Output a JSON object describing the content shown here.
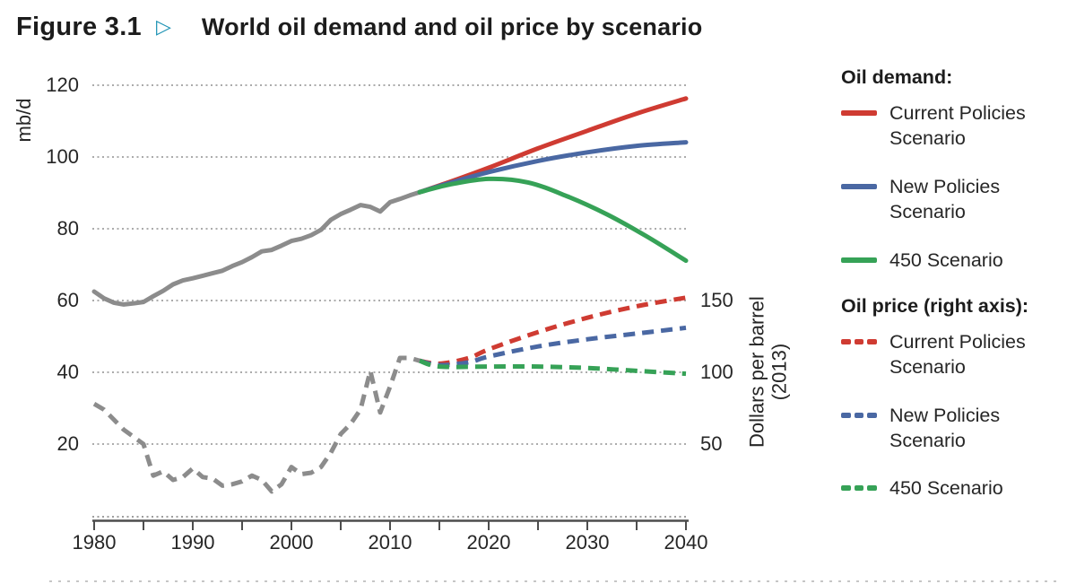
{
  "figure": {
    "label": "Figure 3.1",
    "arrow": "▷",
    "title": "World oil demand and oil price by scenario"
  },
  "colors": {
    "red": "#cf3b32",
    "blue": "#4a68a3",
    "green": "#36a257",
    "gray": "#8c8c8c",
    "teal_arrow": "#1e93b4",
    "grid": "#ababab",
    "axis": "#4d4d4d",
    "text": "#262626"
  },
  "axes": {
    "left": {
      "unit": "mb/d",
      "ticks": [
        120,
        100,
        80,
        60,
        40,
        20
      ]
    },
    "right": {
      "label_line1": "Dollars per barrel",
      "label_line2": "(2013)",
      "ticks": [
        150,
        100,
        50
      ]
    },
    "x": {
      "labeled_ticks": [
        1980,
        1990,
        2000,
        2010,
        2020,
        2030,
        2040
      ],
      "minor_step": 5,
      "range": [
        1980,
        2040
      ]
    }
  },
  "legend": {
    "demand": {
      "heading": "Oil demand:",
      "items": [
        {
          "label": "Current Policies Scenario",
          "color_key": "red",
          "style": "solid"
        },
        {
          "label": "New Policies Scenario",
          "color_key": "blue",
          "style": "solid"
        },
        {
          "label": "450 Scenario",
          "color_key": "green",
          "style": "solid"
        }
      ]
    },
    "price": {
      "heading": "Oil price (right axis):",
      "items": [
        {
          "label": "Current Policies Scenario",
          "color_key": "red",
          "style": "dashed"
        },
        {
          "label": "New Policies Scenario",
          "color_key": "blue",
          "style": "dashed"
        },
        {
          "label": "450 Scenario",
          "color_key": "green",
          "style": "dashed"
        }
      ]
    }
  },
  "chart_data": {
    "type": "line",
    "title": "World oil demand and oil price by scenario",
    "x_axis": {
      "range": [
        1980,
        2040
      ],
      "labeled_ticks": [
        1980,
        1990,
        2000,
        2010,
        2020,
        2030,
        2040
      ],
      "minor_tick_step": 5
    },
    "left_axis": {
      "label": "mb/d",
      "range": [
        0,
        125
      ],
      "ticks": [
        20,
        40,
        60,
        80,
        100,
        120
      ],
      "grid": "dotted"
    },
    "right_axis": {
      "label": "Dollars per barrel (2013)",
      "range": [
        0,
        156.25
      ],
      "ticks": [
        50,
        100,
        150
      ]
    },
    "series": [
      {
        "name": "Oil demand — historical",
        "axis": "left",
        "style": "solid",
        "color_key": "gray",
        "smooth": false,
        "points": [
          [
            1980,
            62.5
          ],
          [
            1981,
            60.6
          ],
          [
            1982,
            59.4
          ],
          [
            1983,
            58.9
          ],
          [
            1984,
            59.2
          ],
          [
            1985,
            59.6
          ],
          [
            1986,
            61.2
          ],
          [
            1987,
            62.7
          ],
          [
            1988,
            64.5
          ],
          [
            1989,
            65.6
          ],
          [
            1990,
            66.2
          ],
          [
            1991,
            66.9
          ],
          [
            1992,
            67.6
          ],
          [
            1993,
            68.3
          ],
          [
            1994,
            69.6
          ],
          [
            1995,
            70.7
          ],
          [
            1996,
            72.1
          ],
          [
            1997,
            73.7
          ],
          [
            1998,
            74.1
          ],
          [
            1999,
            75.3
          ],
          [
            2000,
            76.6
          ],
          [
            2001,
            77.2
          ],
          [
            2002,
            78.2
          ],
          [
            2003,
            79.7
          ],
          [
            2004,
            82.5
          ],
          [
            2005,
            84.1
          ],
          [
            2006,
            85.3
          ],
          [
            2007,
            86.6
          ],
          [
            2008,
            86.1
          ],
          [
            2009,
            84.8
          ],
          [
            2010,
            87.4
          ],
          [
            2011,
            88.3
          ],
          [
            2012,
            89.3
          ],
          [
            2013,
            90.2
          ]
        ]
      },
      {
        "name": "Oil demand — Current Policies Scenario",
        "axis": "left",
        "style": "solid",
        "color_key": "red",
        "smooth": true,
        "points": [
          [
            2013,
            90.2
          ],
          [
            2016,
            93.0
          ],
          [
            2020,
            97.0
          ],
          [
            2025,
            102.4
          ],
          [
            2030,
            107.3
          ],
          [
            2035,
            112.1
          ],
          [
            2040,
            116.3
          ]
        ]
      },
      {
        "name": "Oil demand — New Policies Scenario",
        "axis": "left",
        "style": "solid",
        "color_key": "blue",
        "smooth": true,
        "points": [
          [
            2013,
            90.2
          ],
          [
            2016,
            92.7
          ],
          [
            2020,
            95.8
          ],
          [
            2025,
            98.9
          ],
          [
            2030,
            101.3
          ],
          [
            2035,
            103.1
          ],
          [
            2040,
            104.1
          ]
        ]
      },
      {
        "name": "Oil demand — 450 Scenario",
        "axis": "left",
        "style": "solid",
        "color_key": "green",
        "smooth": true,
        "points": [
          [
            2013,
            90.2
          ],
          [
            2016,
            92.3
          ],
          [
            2020,
            93.9
          ],
          [
            2024,
            92.9
          ],
          [
            2028,
            89.0
          ],
          [
            2032,
            84.0
          ],
          [
            2036,
            77.9
          ],
          [
            2040,
            71.1
          ]
        ]
      },
      {
        "name": "Oil price — historical",
        "axis": "right",
        "style": "dashed",
        "color_key": "gray",
        "smooth": false,
        "points": [
          [
            1980,
            78
          ],
          [
            1981,
            74
          ],
          [
            1982,
            67
          ],
          [
            1983,
            60
          ],
          [
            1984,
            55
          ],
          [
            1985,
            50
          ],
          [
            1986,
            28
          ],
          [
            1987,
            31
          ],
          [
            1988,
            25
          ],
          [
            1989,
            27
          ],
          [
            1990,
            33
          ],
          [
            1991,
            27
          ],
          [
            1992,
            26
          ],
          [
            1993,
            21
          ],
          [
            1994,
            22
          ],
          [
            1995,
            24
          ],
          [
            1996,
            28
          ],
          [
            1997,
            25
          ],
          [
            1998,
            17
          ],
          [
            1999,
            22
          ],
          [
            2000,
            34
          ],
          [
            2001,
            29
          ],
          [
            2002,
            30
          ],
          [
            2003,
            34
          ],
          [
            2004,
            44
          ],
          [
            2005,
            57
          ],
          [
            2006,
            64
          ],
          [
            2007,
            74
          ],
          [
            2008,
            101
          ],
          [
            2009,
            72
          ],
          [
            2010,
            90
          ],
          [
            2011,
            110
          ],
          [
            2012,
            110
          ],
          [
            2013,
            108
          ]
        ]
      },
      {
        "name": "Oil price — Current Policies Scenario",
        "axis": "right",
        "style": "dashed",
        "color_key": "red",
        "smooth": true,
        "points": [
          [
            2013,
            108
          ],
          [
            2015,
            106
          ],
          [
            2018,
            110
          ],
          [
            2020,
            116
          ],
          [
            2025,
            128
          ],
          [
            2030,
            138
          ],
          [
            2035,
            146
          ],
          [
            2040,
            152
          ]
        ]
      },
      {
        "name": "Oil price — New Policies Scenario",
        "axis": "right",
        "style": "dashed",
        "color_key": "blue",
        "smooth": true,
        "points": [
          [
            2013,
            108
          ],
          [
            2015,
            105
          ],
          [
            2018,
            107
          ],
          [
            2020,
            111
          ],
          [
            2025,
            118
          ],
          [
            2030,
            123
          ],
          [
            2035,
            127
          ],
          [
            2040,
            131
          ]
        ]
      },
      {
        "name": "Oil price — 450 Scenario",
        "axis": "right",
        "style": "dashed",
        "color_key": "green",
        "smooth": true,
        "points": [
          [
            2013,
            108
          ],
          [
            2015,
            104
          ],
          [
            2020,
            104
          ],
          [
            2025,
            104
          ],
          [
            2030,
            103
          ],
          [
            2035,
            101
          ],
          [
            2040,
            99
          ]
        ]
      }
    ]
  }
}
